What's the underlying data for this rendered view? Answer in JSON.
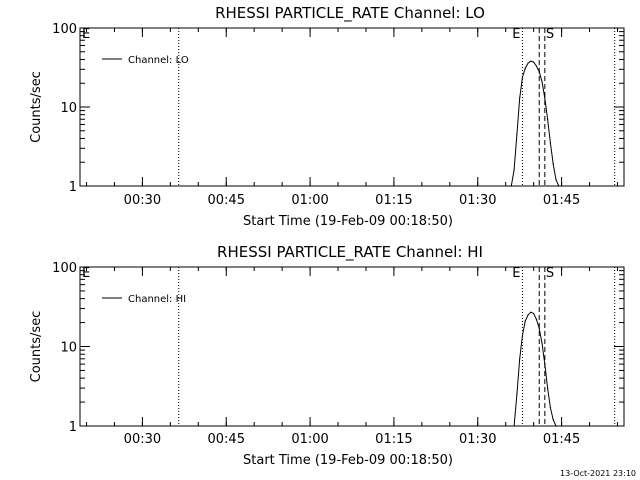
{
  "timestamp": "13-Oct-2021 23:10",
  "chart_data": [
    {
      "type": "line",
      "title": "RHESSI PARTICLE_RATE Channel: LO",
      "xlabel": "Start Time (19-Feb-09 00:18:50)",
      "ylabel": "Counts/sec",
      "y_scale": "log",
      "ylim": [
        1,
        100
      ],
      "xlim": [
        "00:18:50",
        "01:56:10"
      ],
      "x_ticks": [
        "00:30",
        "00:45",
        "01:00",
        "01:15",
        "01:30",
        "01:45"
      ],
      "y_ticks": [
        "1",
        "10",
        "100"
      ],
      "series": [
        {
          "name": "Channel: LO",
          "x": [
            "01:36:00",
            "01:36:30",
            "01:37:00",
            "01:37:30",
            "01:38:00",
            "01:38:30",
            "01:39:00",
            "01:39:30",
            "01:40:00",
            "01:40:30",
            "01:41:00",
            "01:41:30",
            "01:42:00",
            "01:42:30",
            "01:43:00",
            "01:43:30",
            "01:44:00",
            "01:44:30"
          ],
          "y": [
            1,
            1.6,
            4.5,
            13,
            24,
            31,
            36,
            38,
            37,
            33,
            28,
            21,
            13,
            7,
            3.5,
            1.9,
            1.2,
            1
          ]
        }
      ],
      "vlines": [
        {
          "label": "",
          "x": "00:36:30",
          "style": "dotted"
        },
        {
          "label": "E",
          "x": "01:38:00",
          "style": "dotted"
        },
        {
          "label": "",
          "x": "01:41:00",
          "style": "dashed"
        },
        {
          "label": "S",
          "x": "01:42:00",
          "style": "dashed"
        },
        {
          "label": "",
          "x": "01:54:30",
          "style": "dotted"
        }
      ],
      "corner_label": "E",
      "legend": "top-left"
    },
    {
      "type": "line",
      "title": "RHESSI PARTICLE_RATE Channel: HI",
      "xlabel": "Start Time (19-Feb-09 00:18:50)",
      "ylabel": "Counts/sec",
      "y_scale": "log",
      "ylim": [
        1,
        100
      ],
      "xlim": [
        "00:18:50",
        "01:56:10"
      ],
      "x_ticks": [
        "00:30",
        "00:45",
        "01:00",
        "01:15",
        "01:30",
        "01:45"
      ],
      "y_ticks": [
        "1",
        "10",
        "100"
      ],
      "series": [
        {
          "name": "Channel: HI",
          "x": [
            "01:36:30",
            "01:37:00",
            "01:37:30",
            "01:38:00",
            "01:38:30",
            "01:39:00",
            "01:39:30",
            "01:40:00",
            "01:40:30",
            "01:41:00",
            "01:41:30",
            "01:42:00",
            "01:42:30",
            "01:43:00",
            "01:43:30",
            "01:44:00"
          ],
          "y": [
            1,
            2.5,
            7,
            14,
            21,
            25,
            27,
            26,
            22,
            17,
            11,
            6,
            3,
            1.7,
            1.2,
            1
          ]
        }
      ],
      "vlines": [
        {
          "label": "",
          "x": "00:36:30",
          "style": "dotted"
        },
        {
          "label": "E",
          "x": "01:38:00",
          "style": "dotted"
        },
        {
          "label": "",
          "x": "01:41:00",
          "style": "dashed"
        },
        {
          "label": "S",
          "x": "01:42:00",
          "style": "dashed"
        },
        {
          "label": "",
          "x": "01:54:30",
          "style": "dotted"
        }
      ],
      "corner_label": "E",
      "legend": "top-left"
    }
  ]
}
